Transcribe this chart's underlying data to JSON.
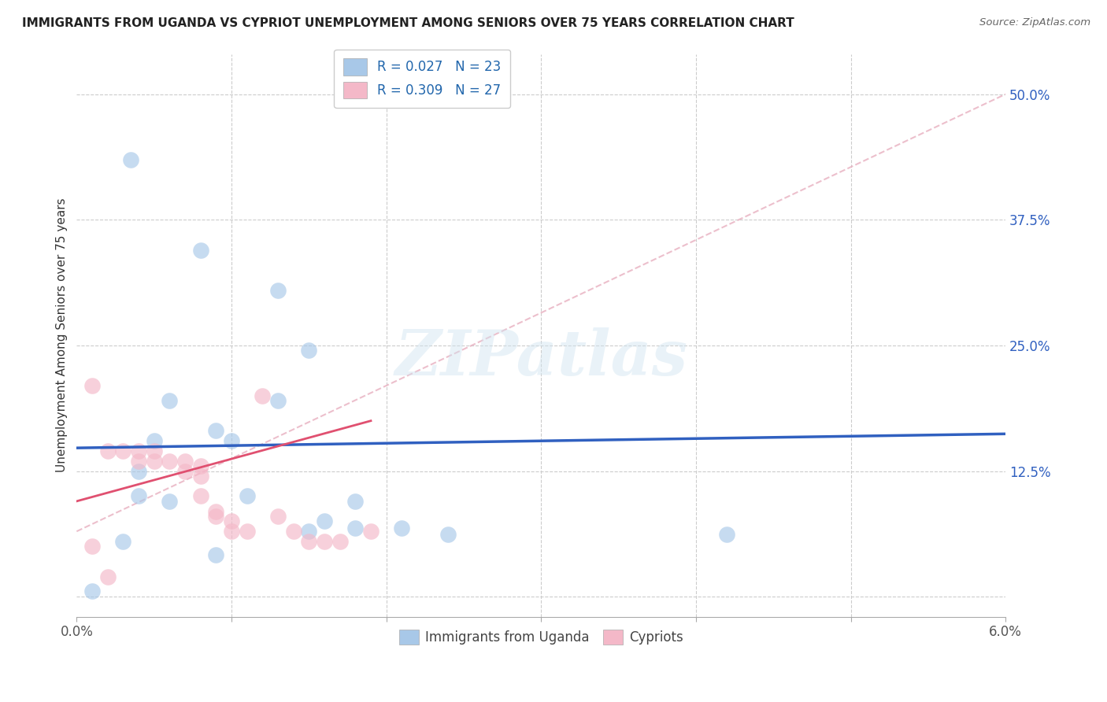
{
  "title": "IMMIGRANTS FROM UGANDA VS CYPRIOT UNEMPLOYMENT AMONG SENIORS OVER 75 YEARS CORRELATION CHART",
  "source": "Source: ZipAtlas.com",
  "ylabel": "Unemployment Among Seniors over 75 years",
  "yticks": [
    0.0,
    0.125,
    0.25,
    0.375,
    0.5
  ],
  "ytick_labels": [
    "",
    "12.5%",
    "25.0%",
    "37.5%",
    "50.0%"
  ],
  "xlim": [
    0.0,
    0.06
  ],
  "ylim": [
    -0.02,
    0.54
  ],
  "legend_r1": "R = 0.027",
  "legend_n1": "N = 23",
  "legend_r2": "R = 0.309",
  "legend_n2": "N = 27",
  "legend_label1": "Immigrants from Uganda",
  "legend_label2": "Cypriots",
  "blue_color": "#a8c8e8",
  "pink_color": "#f4b8c8",
  "blue_line_color": "#3060c0",
  "pink_line_color": "#e05070",
  "dashed_line_color": "#e8b0c0",
  "watermark_text": "ZIPatlas",
  "uganda_x": [
    0.0035,
    0.008,
    0.013,
    0.015,
    0.006,
    0.013,
    0.009,
    0.01,
    0.005,
    0.004,
    0.004,
    0.011,
    0.006,
    0.018,
    0.016,
    0.018,
    0.015,
    0.021,
    0.024,
    0.003,
    0.042,
    0.009,
    0.001
  ],
  "uganda_y": [
    0.435,
    0.345,
    0.305,
    0.245,
    0.195,
    0.195,
    0.165,
    0.155,
    0.155,
    0.125,
    0.1,
    0.1,
    0.095,
    0.095,
    0.075,
    0.068,
    0.065,
    0.068,
    0.062,
    0.055,
    0.062,
    0.042,
    0.006
  ],
  "cypriot_x": [
    0.001,
    0.002,
    0.003,
    0.004,
    0.004,
    0.005,
    0.005,
    0.006,
    0.007,
    0.007,
    0.008,
    0.008,
    0.008,
    0.009,
    0.009,
    0.01,
    0.01,
    0.011,
    0.012,
    0.013,
    0.014,
    0.015,
    0.016,
    0.017,
    0.019,
    0.001,
    0.002
  ],
  "cypriot_y": [
    0.21,
    0.145,
    0.145,
    0.145,
    0.135,
    0.145,
    0.135,
    0.135,
    0.135,
    0.125,
    0.13,
    0.12,
    0.1,
    0.085,
    0.08,
    0.075,
    0.065,
    0.065,
    0.2,
    0.08,
    0.065,
    0.055,
    0.055,
    0.055,
    0.065,
    0.05,
    0.02
  ],
  "blue_line_x": [
    0.0,
    0.06
  ],
  "blue_line_y": [
    0.148,
    0.162
  ],
  "pink_line_x": [
    0.0,
    0.019
  ],
  "pink_line_y": [
    0.095,
    0.175
  ],
  "dashed_line_x": [
    0.0,
    0.06
  ],
  "dashed_line_y": [
    0.065,
    0.5
  ],
  "xtick_positions": [
    0.0,
    0.01,
    0.02,
    0.03,
    0.04,
    0.05,
    0.06
  ],
  "xtick_labels_show_ends_only": true
}
